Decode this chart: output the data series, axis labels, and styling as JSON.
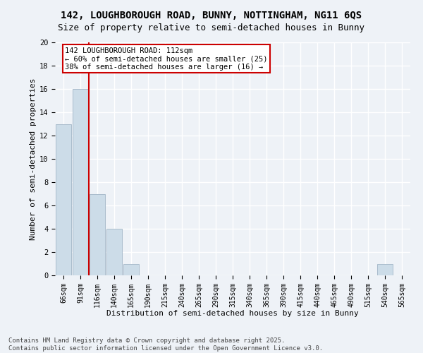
{
  "title_line1": "142, LOUGHBOROUGH ROAD, BUNNY, NOTTINGHAM, NG11 6QS",
  "title_line2": "Size of property relative to semi-detached houses in Bunny",
  "xlabel": "Distribution of semi-detached houses by size in Bunny",
  "ylabel": "Number of semi-detached properties",
  "bin_labels": [
    "66sqm",
    "91sqm",
    "116sqm",
    "140sqm",
    "165sqm",
    "190sqm",
    "215sqm",
    "240sqm",
    "265sqm",
    "290sqm",
    "315sqm",
    "340sqm",
    "365sqm",
    "390sqm",
    "415sqm",
    "440sqm",
    "465sqm",
    "490sqm",
    "515sqm",
    "540sqm",
    "565sqm"
  ],
  "bar_values": [
    13,
    16,
    7,
    4,
    1,
    0,
    0,
    0,
    0,
    0,
    0,
    0,
    0,
    0,
    0,
    0,
    0,
    0,
    0,
    1,
    0
  ],
  "bar_color": "#ccdce8",
  "bar_edge_color": "#aabccc",
  "property_line_x": 1.5,
  "annotation_text": "142 LOUGHBOROUGH ROAD: 112sqm\n← 60% of semi-detached houses are smaller (25)\n38% of semi-detached houses are larger (16) →",
  "annotation_box_color": "#ffffff",
  "annotation_box_edge_color": "#cc0000",
  "line_color": "#cc0000",
  "ylim": [
    0,
    20
  ],
  "yticks": [
    0,
    2,
    4,
    6,
    8,
    10,
    12,
    14,
    16,
    18,
    20
  ],
  "background_color": "#eef2f7",
  "grid_color": "#ffffff",
  "footer_line1": "Contains HM Land Registry data © Crown copyright and database right 2025.",
  "footer_line2": "Contains public sector information licensed under the Open Government Licence v3.0.",
  "title_fontsize": 10,
  "subtitle_fontsize": 9,
  "axis_label_fontsize": 8,
  "tick_fontsize": 7,
  "annotation_fontsize": 7.5,
  "footer_fontsize": 6.5
}
